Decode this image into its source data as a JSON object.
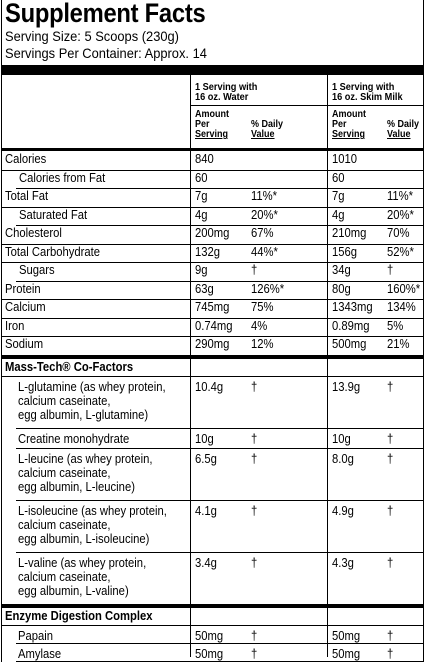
{
  "title": "Supplement Facts",
  "serving_size": "Serving Size: 5 Scoops (230g)",
  "servings_per_container": "Servings Per Container: Approx. 14",
  "columns": {
    "water": {
      "line1": "1 Serving with",
      "line2": "16 oz. Water"
    },
    "milk": {
      "line1": "1 Serving with",
      "line2": "16 oz. Skim Milk"
    },
    "amount_label": [
      "Amount",
      "Per",
      "Serving"
    ],
    "dv_label": [
      "% Daily",
      "Value"
    ]
  },
  "nutrients": [
    {
      "name": "Calories",
      "water_amount": "840",
      "water_dv": "",
      "milk_amount": "1010",
      "milk_dv": ""
    },
    {
      "name": "Calories from Fat",
      "water_amount": "60",
      "water_dv": "",
      "milk_amount": "60",
      "milk_dv": ""
    },
    {
      "name": "Total Fat",
      "water_amount": "7g",
      "water_dv": "11%*",
      "milk_amount": "7g",
      "milk_dv": "11%*"
    },
    {
      "name": "Saturated Fat",
      "water_amount": "4g",
      "water_dv": "20%*",
      "milk_amount": "4g",
      "milk_dv": "20%*"
    },
    {
      "name": "Cholesterol",
      "water_amount": "200mg",
      "water_dv": "67%",
      "milk_amount": "210mg",
      "milk_dv": "70%"
    },
    {
      "name": "Total Carbohydrate",
      "water_amount": "132g",
      "water_dv": "44%*",
      "milk_amount": "156g",
      "milk_dv": "52%*"
    },
    {
      "name": "Sugars",
      "water_amount": "9g",
      "water_dv": "†",
      "milk_amount": "34g",
      "milk_dv": "†"
    },
    {
      "name": "Protein",
      "water_amount": "63g",
      "water_dv": "126%*",
      "milk_amount": "80g",
      "milk_dv": "160%*"
    },
    {
      "name": "Calcium",
      "water_amount": "745mg",
      "water_dv": "75%",
      "milk_amount": "1343mg",
      "milk_dv": "134%"
    },
    {
      "name": "Iron",
      "water_amount": "0.74mg",
      "water_dv": "4%",
      "milk_amount": "0.89mg",
      "milk_dv": "5%"
    },
    {
      "name": "Sodium",
      "water_amount": "290mg",
      "water_dv": "12%",
      "milk_amount": "500mg",
      "milk_dv": "21%"
    }
  ],
  "cofactors_heading": "Mass-Tech® Co-Factors",
  "cofactors": [
    {
      "lines": [
        "L-glutamine (as whey protein,",
        "calcium caseinate,",
        "egg albumin, L-glutamine)"
      ],
      "water_amount": "10.4g",
      "water_dv": "†",
      "milk_amount": "13.9g",
      "milk_dv": "†"
    },
    {
      "lines": [
        "Creatine monohydrate"
      ],
      "water_amount": "10g",
      "water_dv": "†",
      "milk_amount": "10g",
      "milk_dv": "†"
    },
    {
      "lines": [
        "L-leucine (as whey protein,",
        "calcium caseinate,",
        "egg albumin, L-leucine)"
      ],
      "water_amount": "6.5g",
      "water_dv": "†",
      "milk_amount": "8.0g",
      "milk_dv": "†"
    },
    {
      "lines": [
        "L-isoleucine (as whey protein,",
        "calcium caseinate,",
        "egg albumin, L-isoleucine)"
      ],
      "water_amount": "4.1g",
      "water_dv": "†",
      "milk_amount": "4.9g",
      "milk_dv": "†"
    },
    {
      "lines": [
        "L-valine (as whey protein,",
        "calcium caseinate,",
        "egg albumin, L-valine)"
      ],
      "water_amount": "3.4g",
      "water_dv": "†",
      "milk_amount": "4.3g",
      "milk_dv": "†"
    }
  ],
  "enzyme_heading": "Enzyme Digestion Complex",
  "enzymes": [
    {
      "name": "Papain",
      "water_amount": "50mg",
      "water_dv": "†",
      "milk_amount": "50mg",
      "milk_dv": "†"
    },
    {
      "name": "Amylase",
      "water_amount": "50mg",
      "water_dv": "†",
      "milk_amount": "50mg",
      "milk_dv": "†"
    }
  ]
}
